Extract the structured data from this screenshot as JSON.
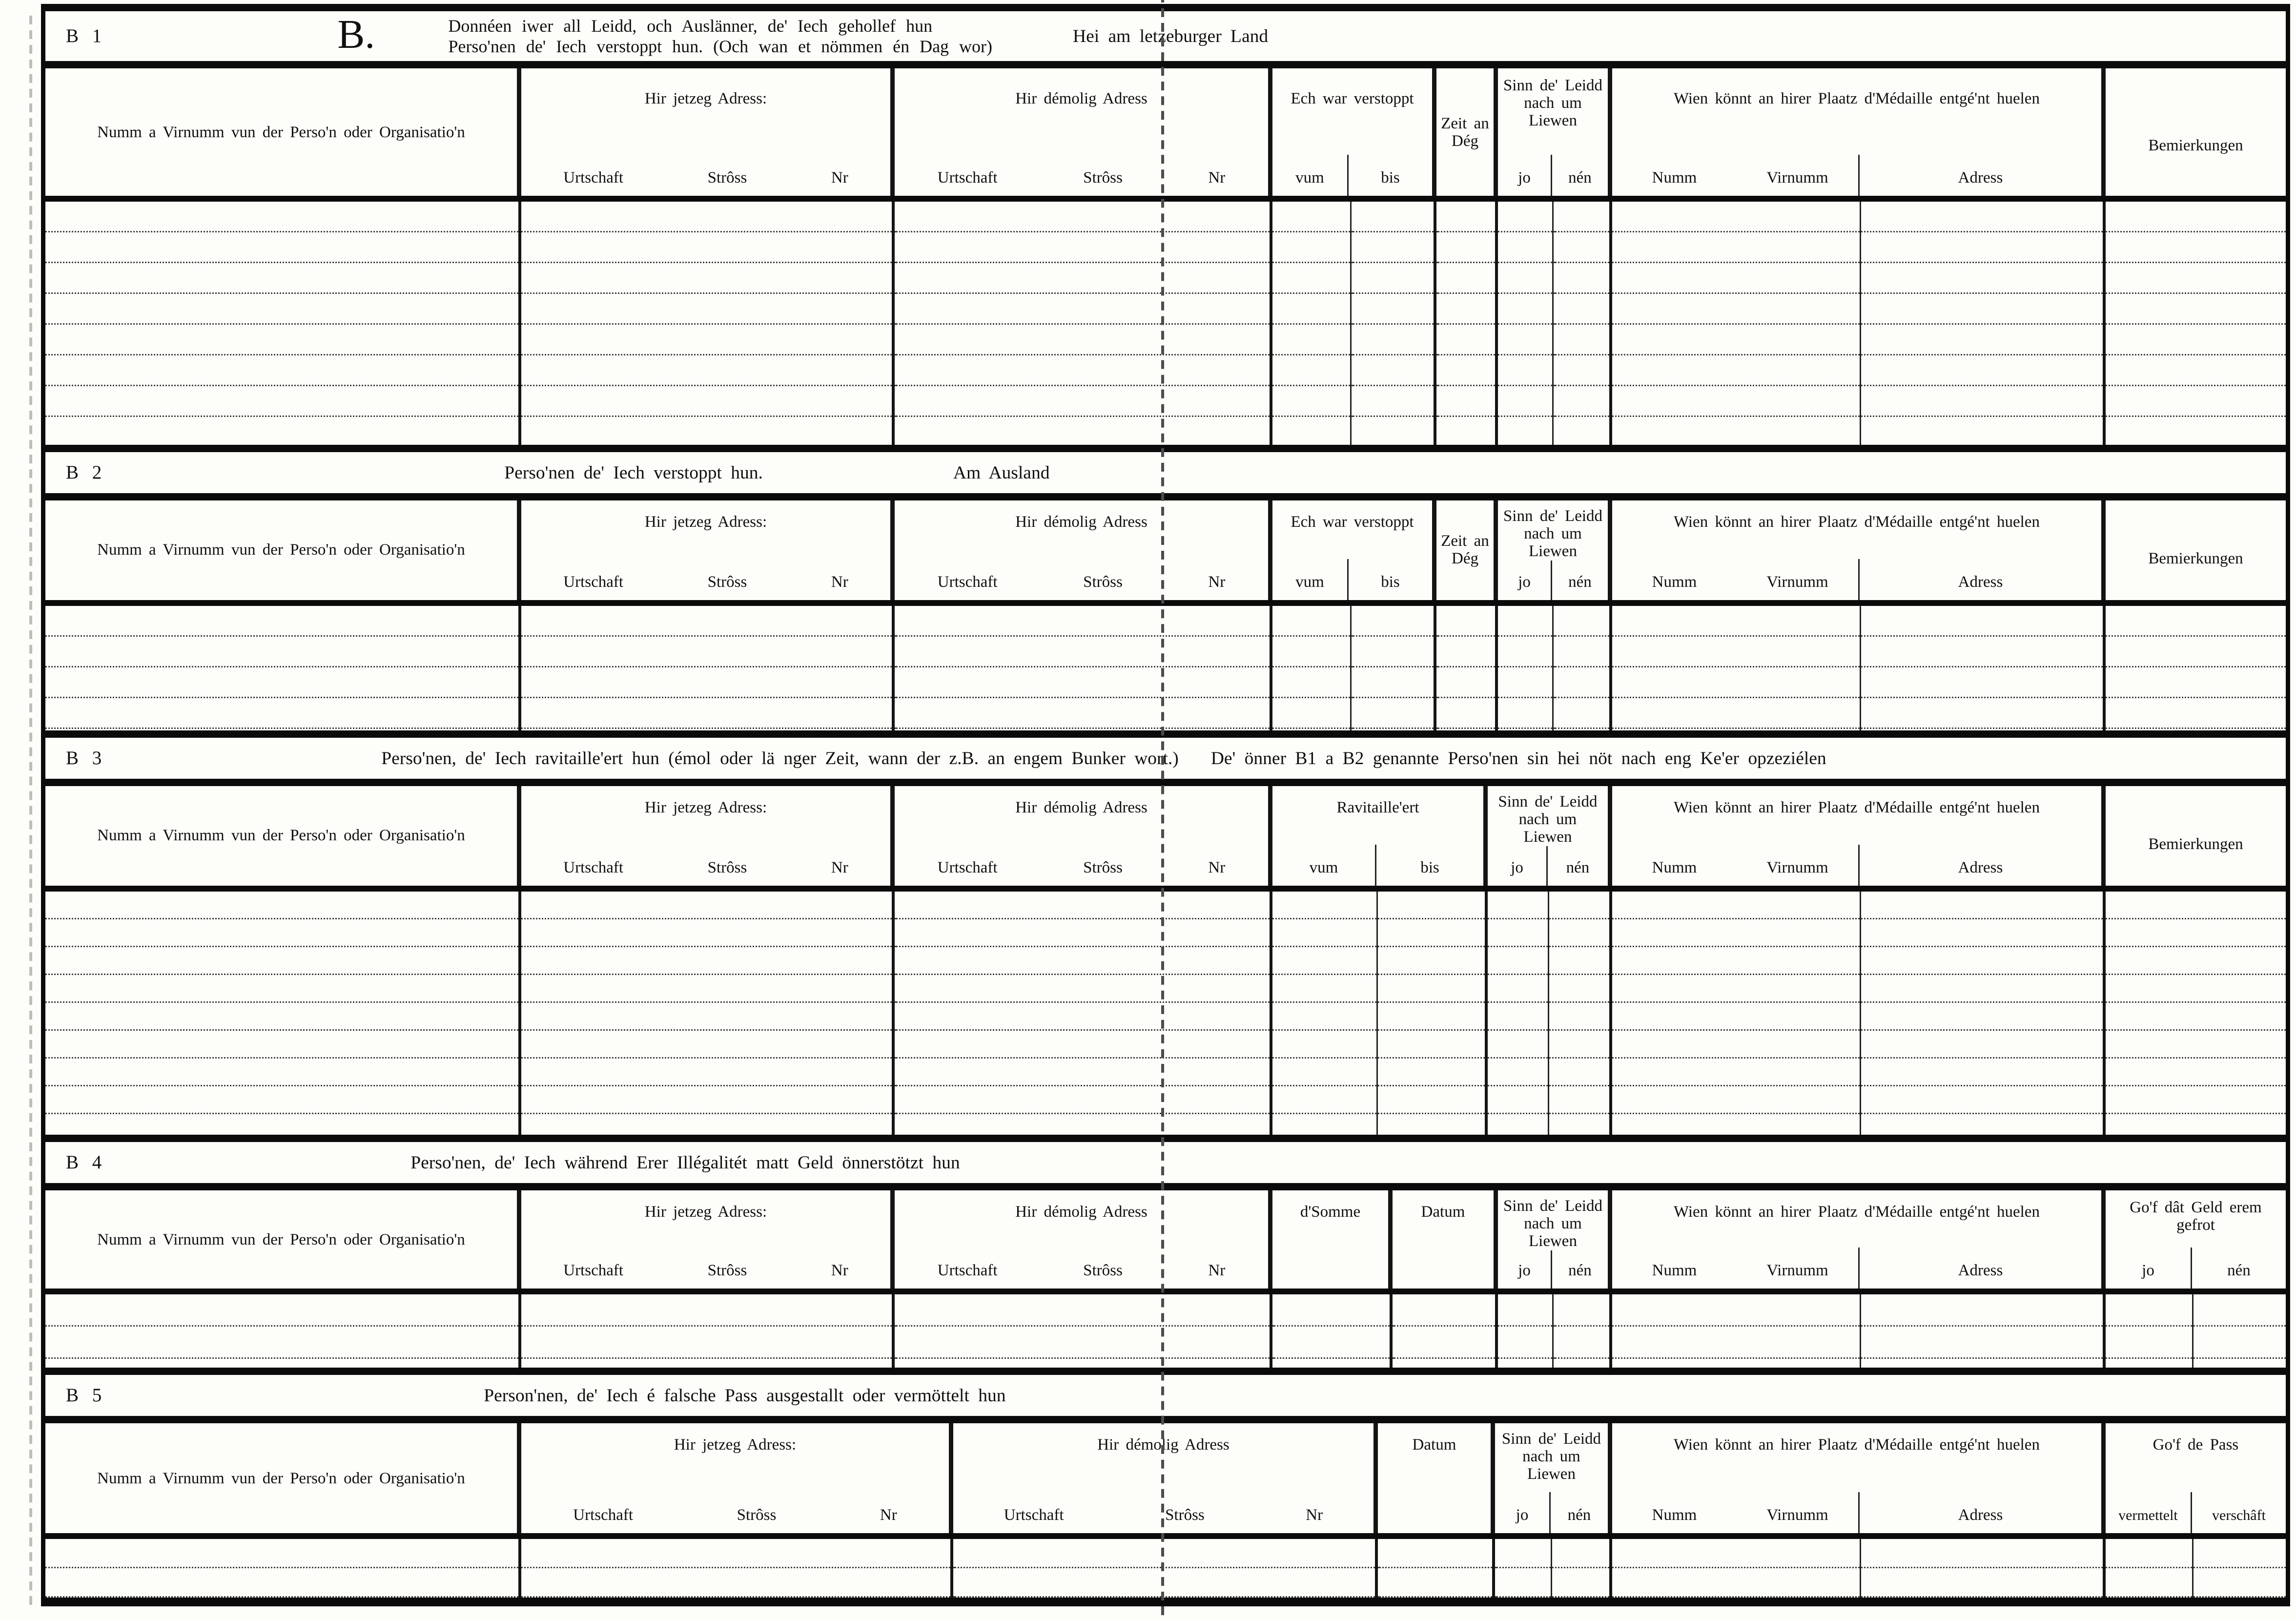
{
  "page": {
    "sections": [
      {
        "id": "B 1",
        "big_letter": "B.",
        "title_line1": "Donnéen iwer all Leidd, och Auslänner, de' Iech gehollef hun",
        "title_line2": "Perso'nen de' Iech verstoppt hun. (Och wan et nömmen én Dag wor)",
        "title_right": "Hei am letzeburger Land",
        "row_count": 8,
        "cols": {
          "name": "Numm a Virnumm vun der Perso'n oder Organisatio'n",
          "jetzeg": {
            "title": "Hir jetzeg Adress:",
            "sub": [
              "Urtschaft",
              "Strôss",
              "Nr"
            ]
          },
          "demolig": {
            "title": "Hir démolig Adress",
            "sub": [
              "Urtschaft",
              "Strôss",
              "Nr"
            ]
          },
          "verstoppt": {
            "title": "Ech war verstoppt",
            "sub": [
              "vum",
              "bis"
            ]
          },
          "zeit": "Zeit an Dég",
          "sinn": {
            "title": "Sinn de' Leidd nach um Liewen",
            "sub": [
              "jo",
              "nén"
            ]
          },
          "wien": {
            "title": "Wien könnt an hirer Plaatz d'Médaille entgé'nt huelen",
            "sub": [
              "Numm",
              "Virnumm",
              "Adress"
            ]
          },
          "bemierkungen": "Bemierkungen"
        }
      },
      {
        "id": "B 2",
        "title": "Perso'nen de' Iech verstoppt hun.",
        "title_right": "Am Ausland",
        "row_count": 4,
        "cols": {
          "name": "Numm a Virnumm vun der Perso'n oder Organisatio'n",
          "jetzeg": {
            "title": "Hir jetzeg Adress:",
            "sub": [
              "Urtschaft",
              "Strôss",
              "Nr"
            ]
          },
          "demolig": {
            "title": "Hir démolig Adress",
            "sub": [
              "Urtschaft",
              "Strôss",
              "Nr"
            ]
          },
          "verstoppt": {
            "title": "Ech war verstoppt",
            "sub": [
              "vum",
              "bis"
            ]
          },
          "zeit": "Zeit an Dég",
          "sinn": {
            "title": "Sinn de' Leidd nach um Liewen",
            "sub": [
              "jo",
              "nén"
            ]
          },
          "wien": {
            "title": "Wien könnt an hirer Plaatz d'Médaille entgé'nt huelen",
            "sub": [
              "Numm",
              "Virnumm",
              "Adress"
            ]
          },
          "bemierkungen": "Bemierkungen"
        }
      },
      {
        "id": "B 3",
        "title": "Perso'nen, de' Iech ravitaille'ert hun (émol oder lä nger Zeit, wann der z.B. an engem Bunker wort.)",
        "title2": "De' önner B1 a B2 genannte Perso'nen sin hei nöt nach eng Ke'er opzeziélen",
        "row_count": 9,
        "cols": {
          "name": "Numm a Virnumm vun der Perso'n oder Organisatio'n",
          "jetzeg": {
            "title": "Hir jetzeg Adress:",
            "sub": [
              "Urtschaft",
              "Strôss",
              "Nr"
            ]
          },
          "demolig": {
            "title": "Hir démolig Adress",
            "sub": [
              "Urtschaft",
              "Strôss",
              "Nr"
            ]
          },
          "ravitailleert": {
            "title": "Ravitaille'ert",
            "sub": [
              "vum",
              "bis"
            ]
          },
          "sinn": {
            "title": "Sinn de' Leidd nach um Liewen",
            "sub": [
              "jo",
              "nén"
            ]
          },
          "wien": {
            "title": "Wien könnt an hirer Plaatz d'Médaille entgé'nt huelen",
            "sub": [
              "Numm",
              "Virnumm",
              "Adress"
            ]
          },
          "bemierkungen": "Bemierkungen"
        }
      },
      {
        "id": "B 4",
        "title": "Perso'nen, de' Iech während Erer Illégalitét matt Geld önnerstötzt hun",
        "row_count": 2,
        "cols": {
          "name": "Numm a Virnumm vun der Perso'n oder Organisatio'n",
          "jetzeg": {
            "title": "Hir jetzeg Adress:",
            "sub": [
              "Urtschaft",
              "Strôss",
              "Nr"
            ]
          },
          "demolig": {
            "title": "Hir démolig Adress",
            "sub": [
              "Urtschaft",
              "Strôss",
              "Nr"
            ]
          },
          "somme": "d'Somme",
          "datum": "Datum",
          "sinn": {
            "title": "Sinn de' Leidd nach um Liewen",
            "sub": [
              "jo",
              "nén"
            ]
          },
          "wien": {
            "title": "Wien könnt an hirer Plaatz d'Médaille entgé'nt huelen",
            "sub": [
              "Numm",
              "Virnumm",
              "Adress"
            ]
          },
          "gof_geld": {
            "title": "Go'f dât Geld erem gefrot",
            "sub": [
              "jo",
              "nén"
            ]
          }
        }
      },
      {
        "id": "B 5",
        "title": "Person'nen, de' Iech é falsche Pass ausgestallt oder vermöttelt hun",
        "row_count": 2,
        "cols": {
          "name": "Numm a Virnumm vun der Perso'n oder Organisatio'n",
          "jetzeg": {
            "title": "Hir jetzeg Adress:",
            "sub": [
              "Urtschaft",
              "Strôss",
              "Nr"
            ]
          },
          "demolig": {
            "title": "Hir démolig Adress",
            "sub": [
              "Urtschaft",
              "Strôss",
              "Nr"
            ]
          },
          "datum": "Datum",
          "sinn": {
            "title": "Sinn de' Leidd nach um Liewen",
            "sub": [
              "jo",
              "nén"
            ]
          },
          "wien": {
            "title": "Wien könnt an hirer Plaatz d'Médaille entgé'nt huelen",
            "sub": [
              "Numm",
              "Virnumm",
              "Adress"
            ]
          },
          "gof_pass": {
            "title": "Go'f de Pass",
            "sub": [
              "vermettelt",
              "verschâft"
            ]
          }
        }
      }
    ]
  }
}
